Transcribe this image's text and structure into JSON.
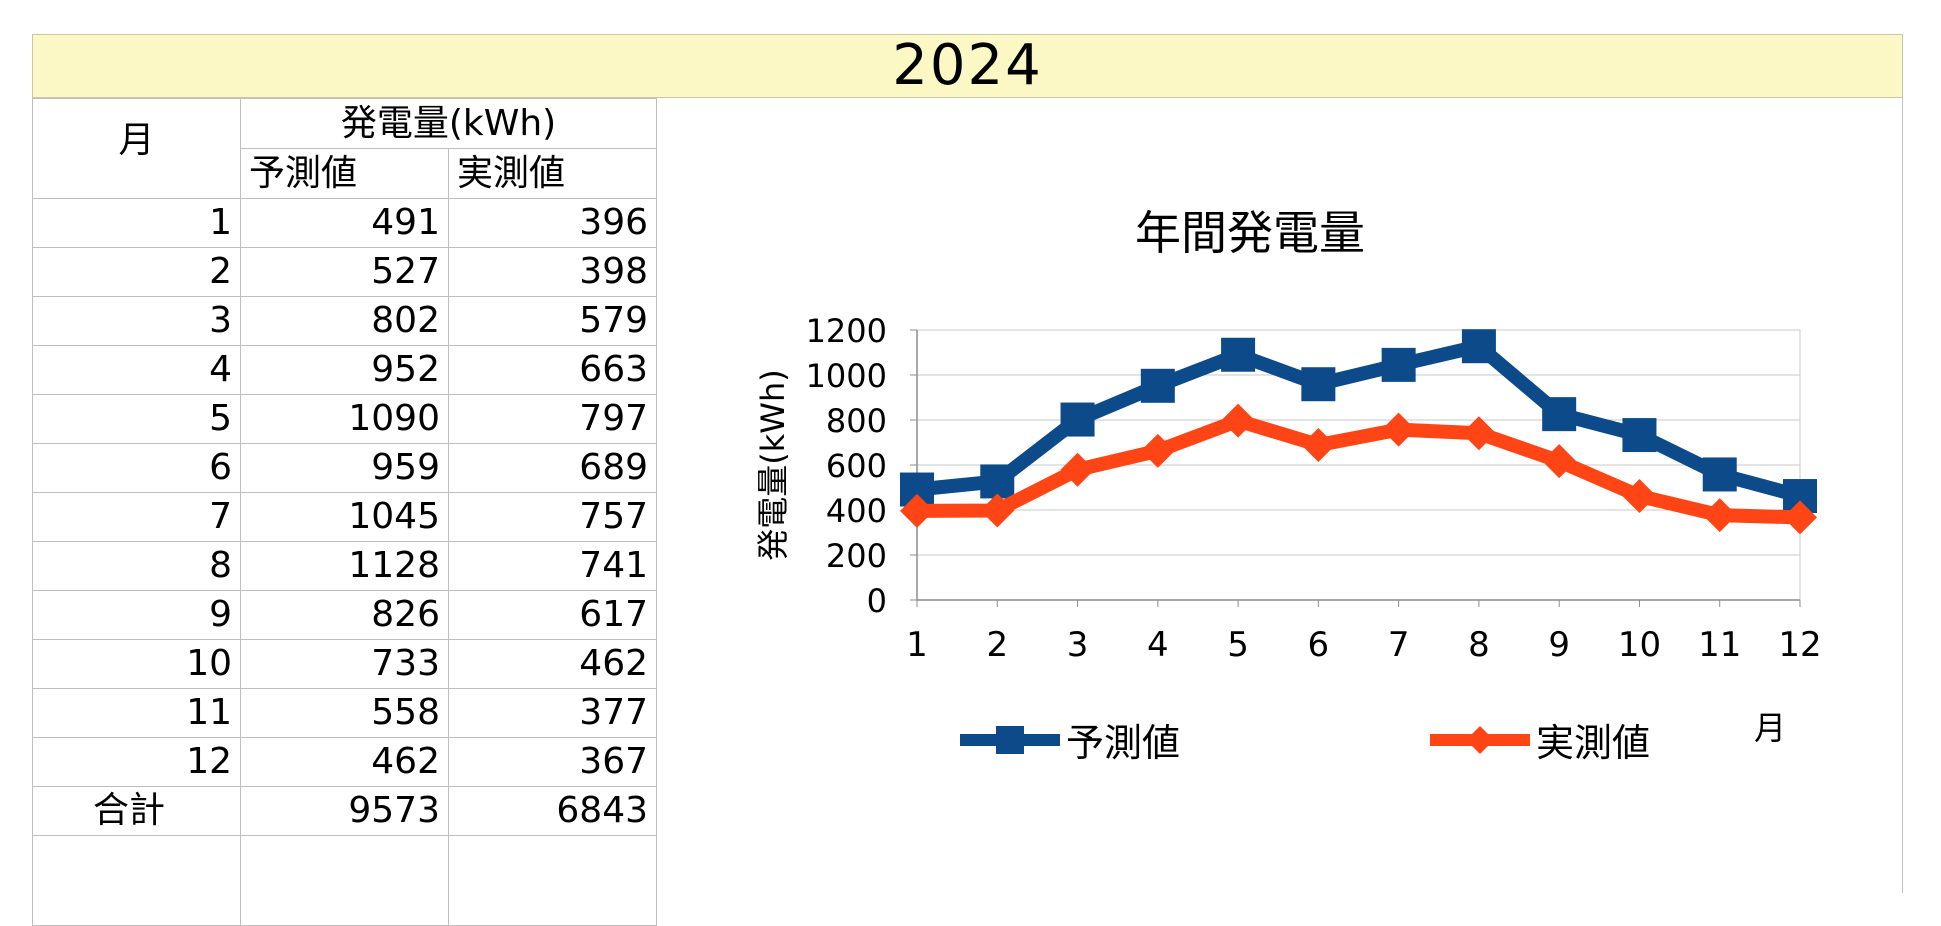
{
  "year": "2024",
  "table": {
    "month_header": "月",
    "group_header": "発電量(kWh)",
    "col_predicted": "予測値",
    "col_actual": "実測値",
    "rows": [
      {
        "month": "1",
        "predicted": "491",
        "actual": "396"
      },
      {
        "month": "2",
        "predicted": "527",
        "actual": "398"
      },
      {
        "month": "3",
        "predicted": "802",
        "actual": "579"
      },
      {
        "month": "4",
        "predicted": "952",
        "actual": "663"
      },
      {
        "month": "5",
        "predicted": "1090",
        "actual": "797"
      },
      {
        "month": "6",
        "predicted": "959",
        "actual": "689"
      },
      {
        "month": "7",
        "predicted": "1045",
        "actual": "757"
      },
      {
        "month": "8",
        "predicted": "1128",
        "actual": "741"
      },
      {
        "month": "9",
        "predicted": "826",
        "actual": "617"
      },
      {
        "month": "10",
        "predicted": "733",
        "actual": "462"
      },
      {
        "month": "11",
        "predicted": "558",
        "actual": "377"
      },
      {
        "month": "12",
        "predicted": "462",
        "actual": "367"
      }
    ],
    "total_label": "合計",
    "total_predicted": "9573",
    "total_actual": "6843"
  },
  "chart_data": {
    "type": "line",
    "title": "年間発電量",
    "xlabel": "月",
    "ylabel": "発電量(kWh)",
    "categories": [
      "1",
      "2",
      "3",
      "4",
      "5",
      "6",
      "7",
      "8",
      "9",
      "10",
      "11",
      "12"
    ],
    "ylim": [
      0,
      1200
    ],
    "yticks": [
      0,
      200,
      400,
      600,
      800,
      1000,
      1200
    ],
    "grid": true,
    "legend_position": "bottom",
    "series": [
      {
        "name": "予測値",
        "color": "#0d4a8a",
        "marker": "square",
        "values": [
          491,
          527,
          802,
          952,
          1090,
          959,
          1045,
          1128,
          826,
          733,
          558,
          462
        ]
      },
      {
        "name": "実測値",
        "color": "#ff4515",
        "marker": "diamond",
        "values": [
          396,
          398,
          579,
          663,
          797,
          689,
          757,
          741,
          617,
          462,
          377,
          367
        ]
      }
    ]
  }
}
